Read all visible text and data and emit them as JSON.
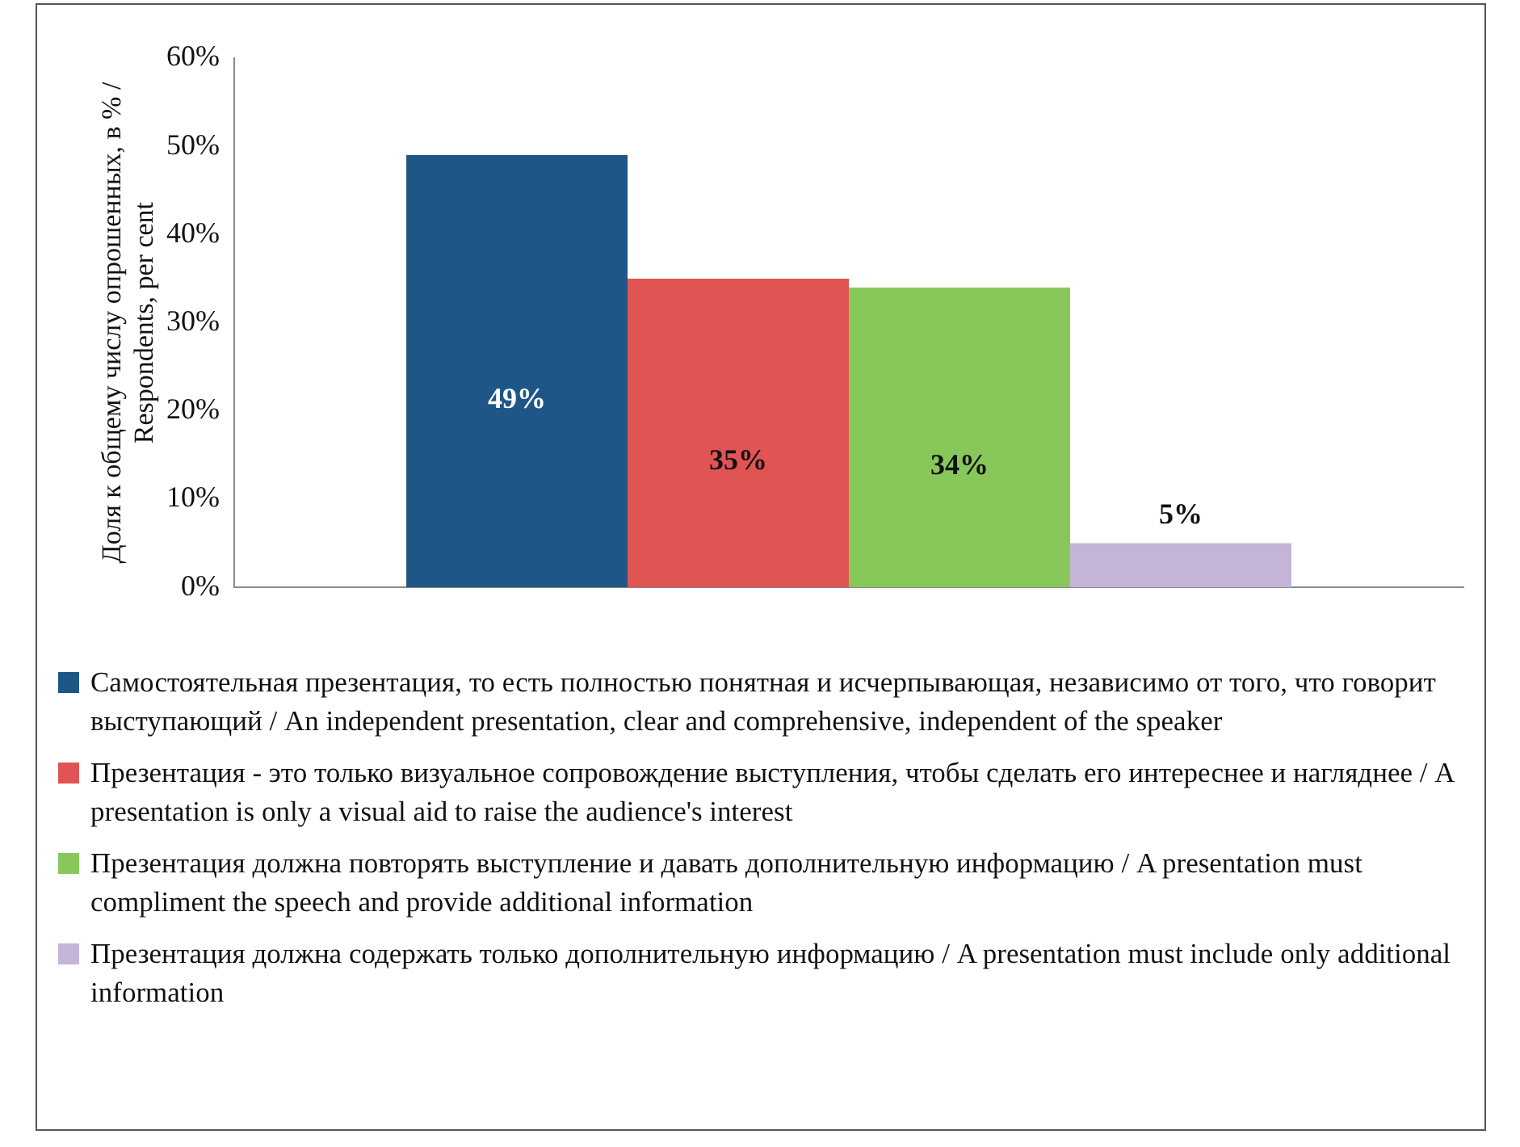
{
  "chart_data": {
    "type": "bar",
    "ylabel": "Доля к общему числу опрошенных, в % / Respondents, per cent",
    "categories": [
      null
    ],
    "series": [
      {
        "name": "Самостоятельная презентация, то есть полностью понятная и исчерпывающая, независимо от того, что говорит выступающий / An independent presentation, clear and comprehensive, independent of the speaker",
        "color": "#1f5688",
        "values": [
          49
        ],
        "value_labels": [
          "49%"
        ]
      },
      {
        "name": "Презентация - это только визуальное сопровождение выступления, чтобы сделать его интереснее и нагляднее / A presentation is only a visual aid to raise the audience's interest",
        "color": "#e25454",
        "values": [
          35
        ],
        "value_labels": [
          "35%"
        ]
      },
      {
        "name": "Презентация должна повторять выступление и давать дополнительную информацию / A presentation must compliment the speech and provide additional information",
        "color": "#88c85a",
        "values": [
          34
        ],
        "value_labels": [
          "34%"
        ]
      },
      {
        "name": "Презентация должна содержать только дополнительную информацию / A presentation must include only additional information",
        "color": "#c4b4d8",
        "values": [
          5
        ],
        "value_labels": [
          "5%"
        ]
      }
    ],
    "ylim": [
      0,
      60
    ],
    "yticks": [
      {
        "value": 0,
        "label": "0%"
      },
      {
        "value": 10,
        "label": "10%"
      },
      {
        "value": 20,
        "label": "20%"
      },
      {
        "value": 30,
        "label": "30%"
      },
      {
        "value": 40,
        "label": "40%"
      },
      {
        "value": 50,
        "label": "50%"
      },
      {
        "value": 60,
        "label": "60%"
      }
    ],
    "grid": false,
    "legend": "bottom"
  }
}
